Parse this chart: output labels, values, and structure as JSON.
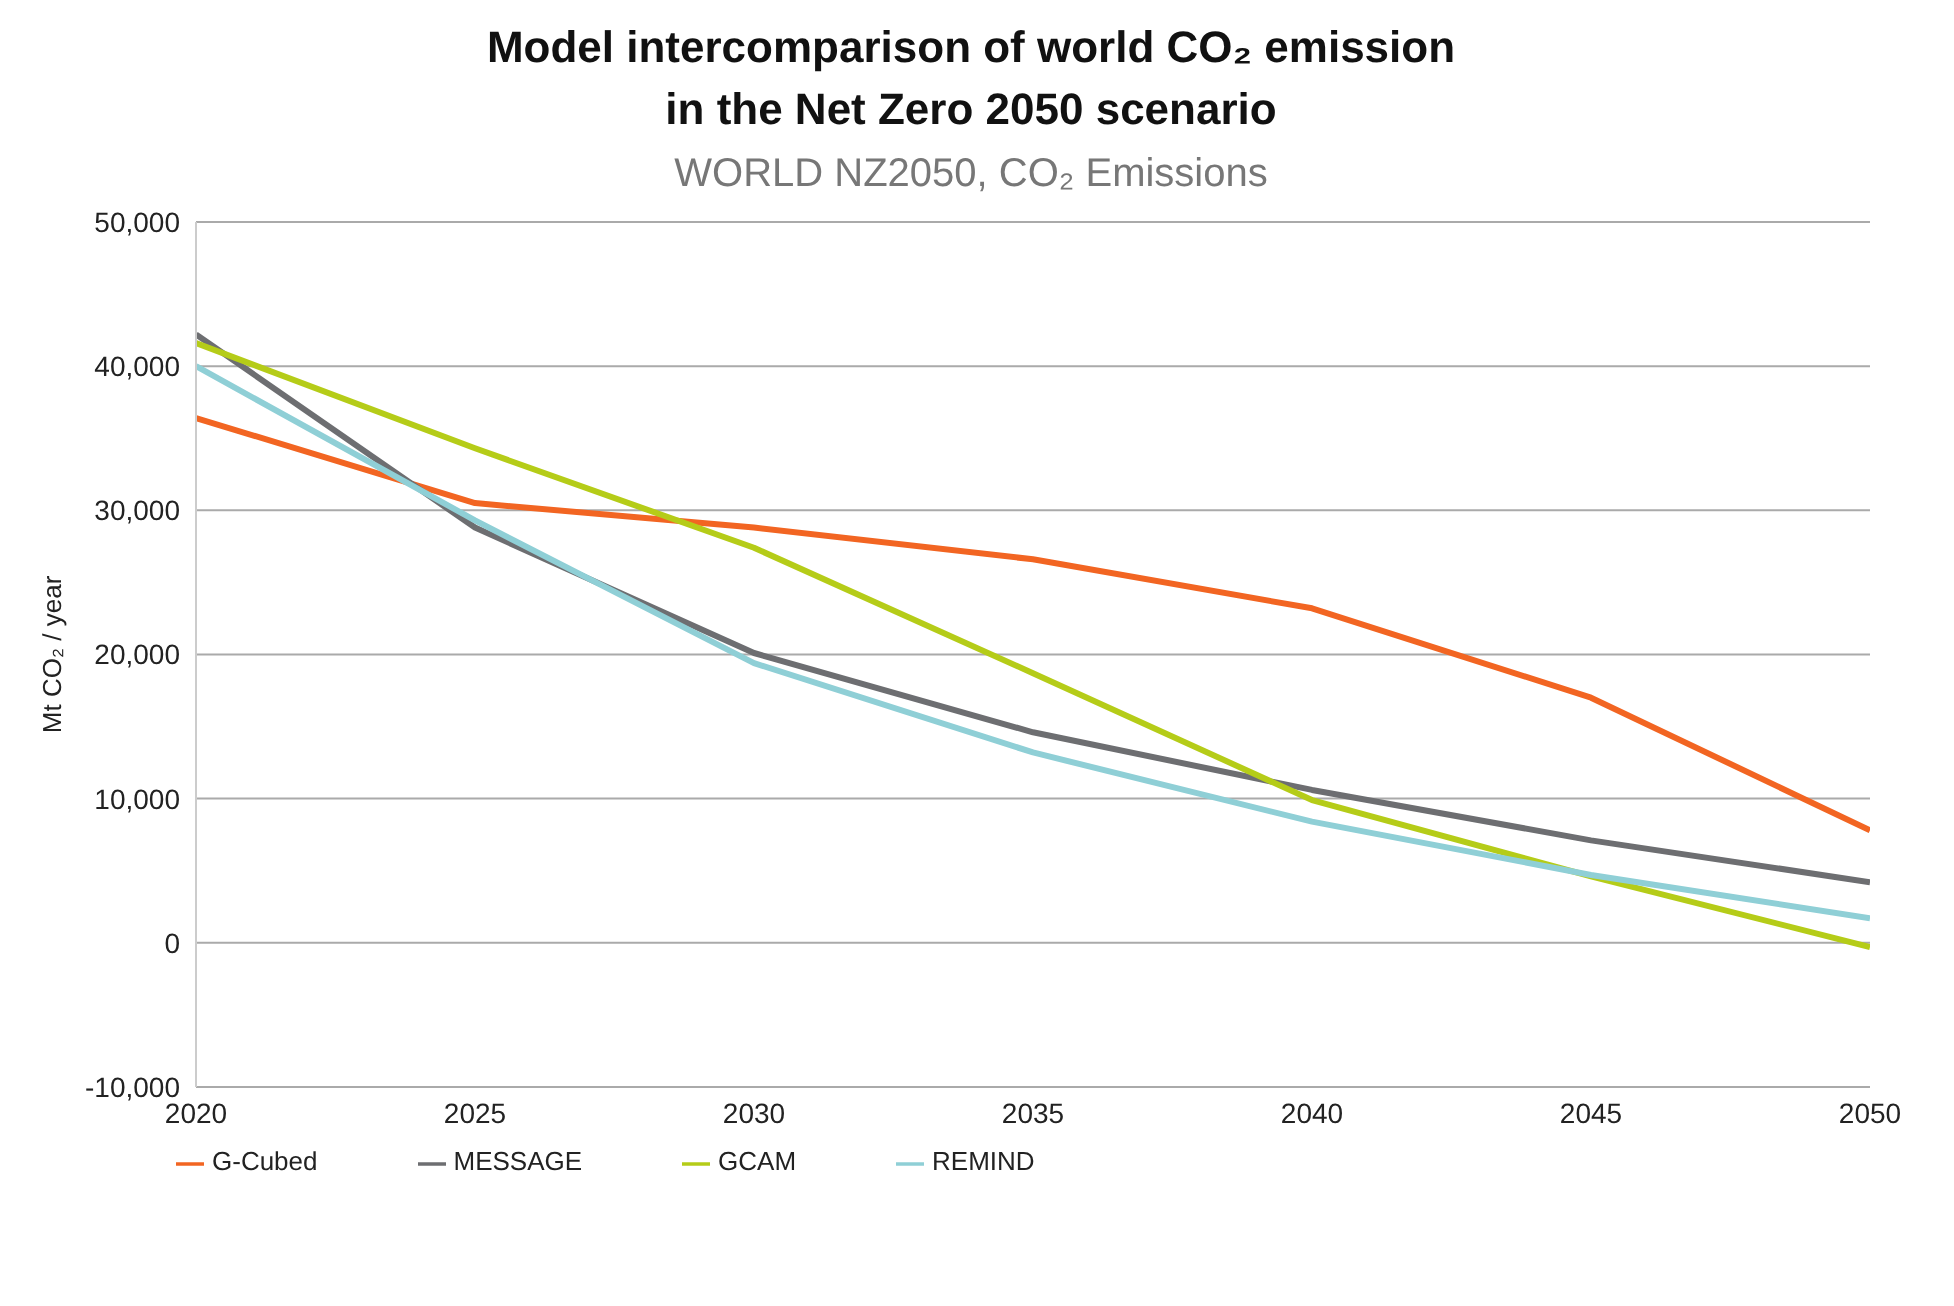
{
  "chart_data": {
    "type": "line",
    "title": "Model intercomparison of world CO₂ emission\nin the Net Zero 2050 scenario",
    "subtitle": "WORLD NZ2050, CO₂ Emissions",
    "ylabel": "Mt CO₂ / year",
    "x": [
      2020,
      2025,
      2030,
      2035,
      2040,
      2045,
      2050
    ],
    "series": [
      {
        "name": "G-Cubed",
        "color": "#f26522",
        "values": [
          36400,
          30500,
          28800,
          26600,
          23200,
          17000,
          7800
        ]
      },
      {
        "name": "MESSAGE",
        "color": "#6d6e71",
        "values": [
          42200,
          28800,
          20100,
          14600,
          10600,
          7100,
          4200
        ]
      },
      {
        "name": "GCAM",
        "color": "#b5cc18",
        "values": [
          41600,
          34300,
          27400,
          18700,
          9900,
          4600,
          -300
        ]
      },
      {
        "name": "REMIND",
        "color": "#8fcfd6",
        "values": [
          40000,
          29300,
          19400,
          13200,
          8400,
          4700,
          1700
        ]
      }
    ],
    "xlim": [
      2020,
      2050
    ],
    "xticks": [
      2020,
      2025,
      2030,
      2035,
      2040,
      2045,
      2050
    ],
    "ylim": [
      -10000,
      50000
    ],
    "yticks": [
      {
        "value": -10000,
        "label": "-10,000"
      },
      {
        "value": 0,
        "label": "0"
      },
      {
        "value": 10000,
        "label": "10,000"
      },
      {
        "value": 20000,
        "label": "20,000"
      },
      {
        "value": 30000,
        "label": "30,000"
      },
      {
        "value": 40000,
        "label": "40,000"
      },
      {
        "value": 50000,
        "label": "50,000"
      }
    ],
    "grid": "y",
    "legend": "bottom left",
    "marker": "none",
    "line_style": "solid"
  }
}
